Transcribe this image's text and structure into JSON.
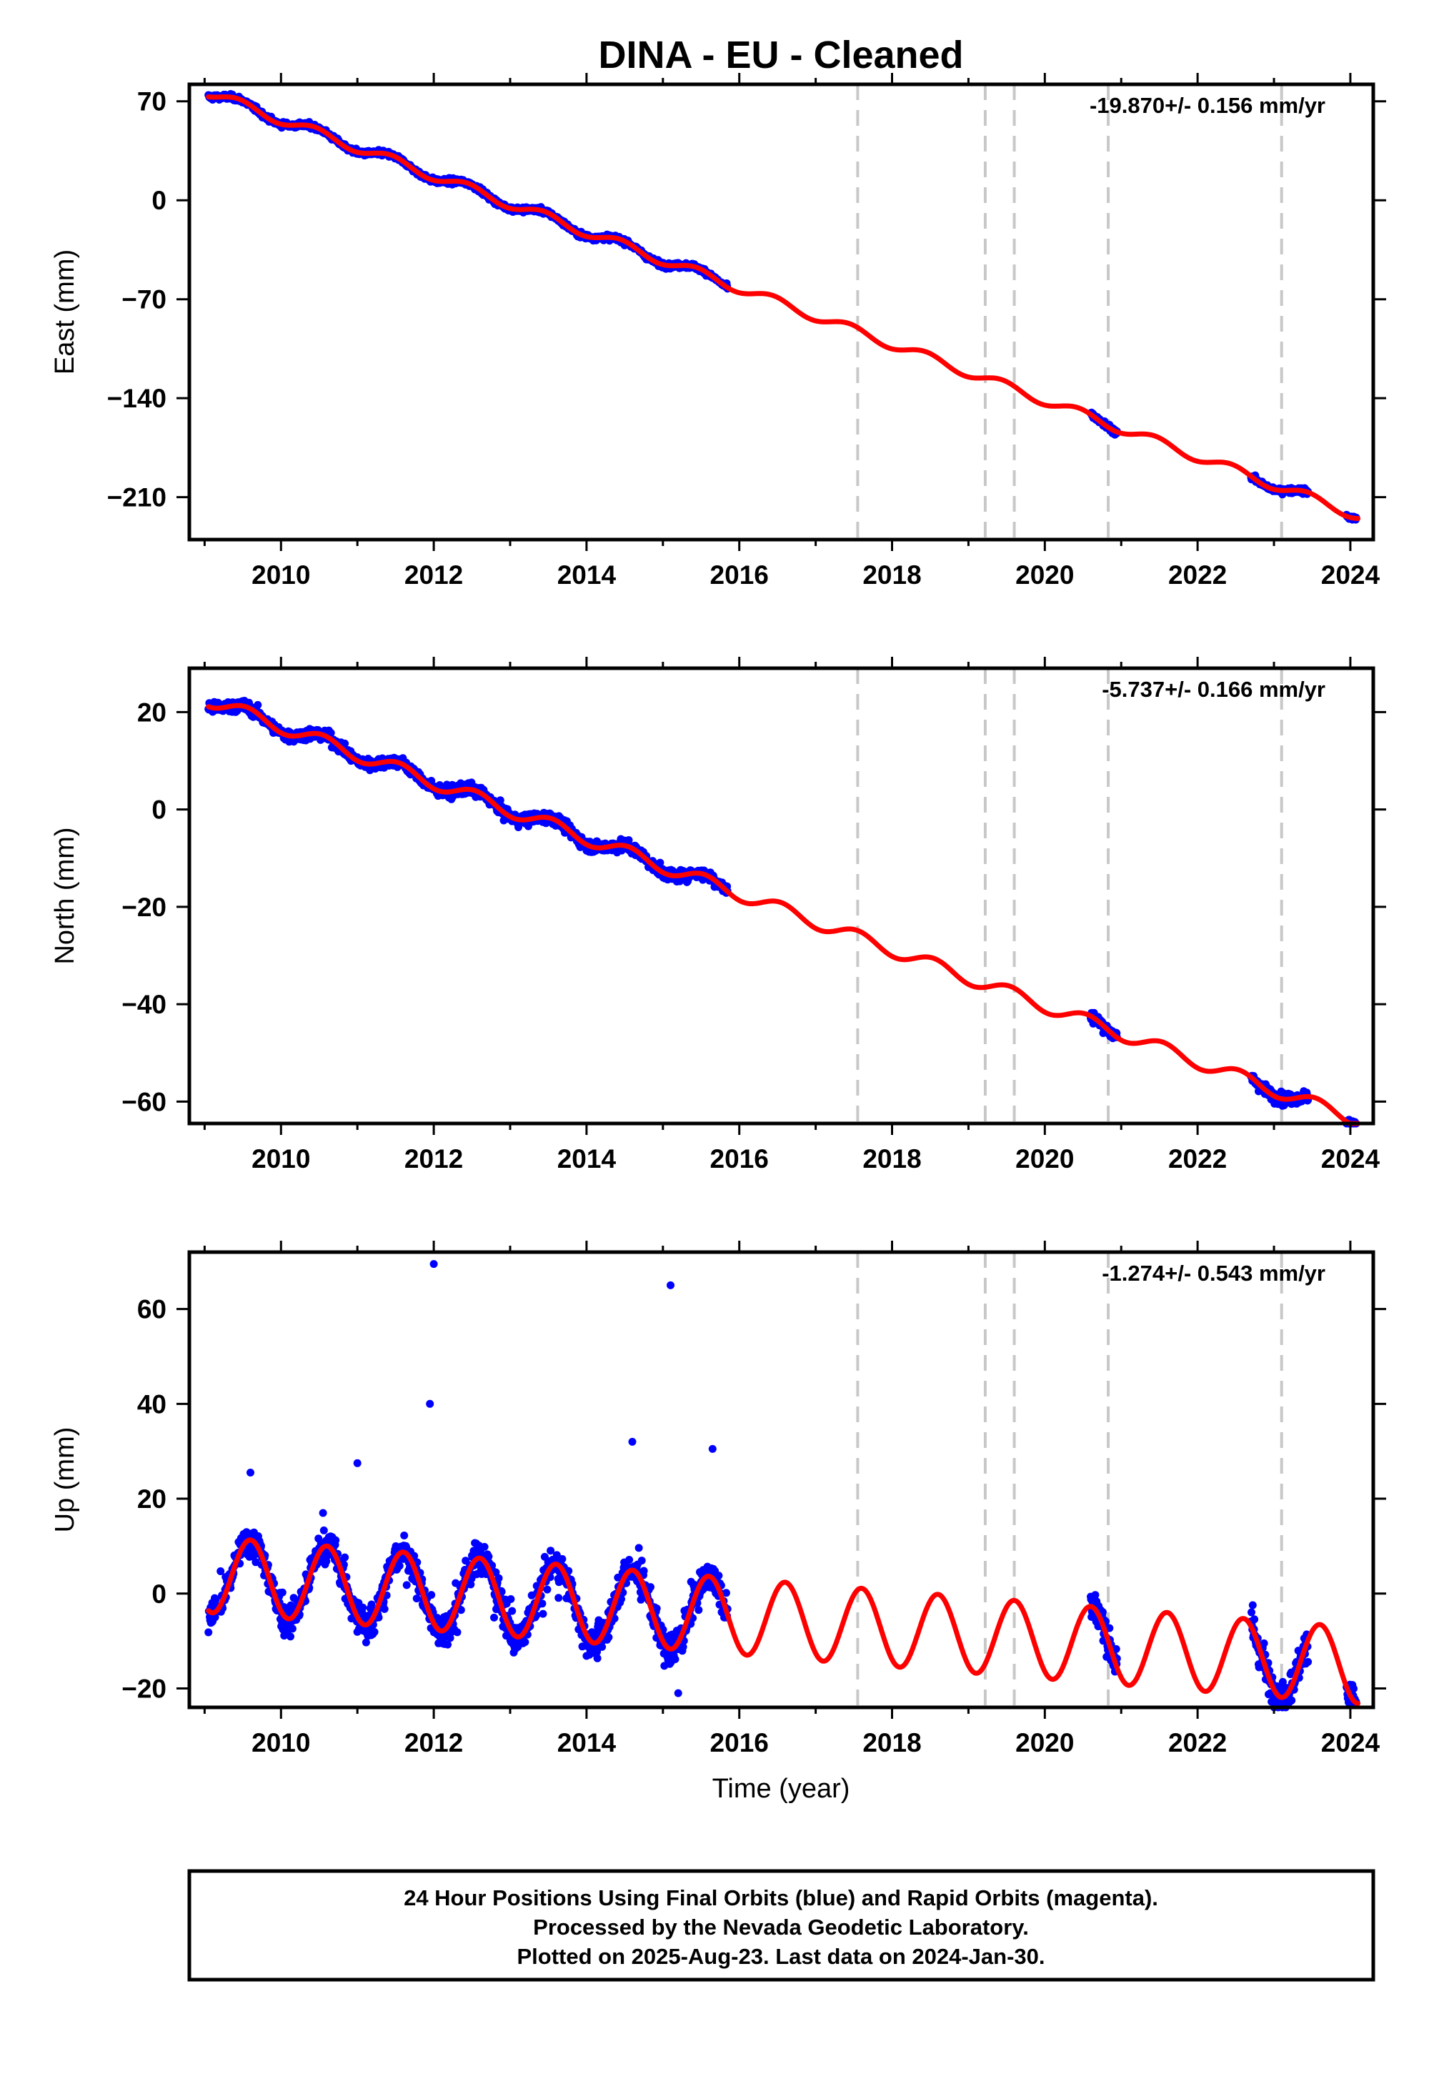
{
  "title": "DINA  - EU - Cleaned",
  "colors": {
    "points": "#0000ff",
    "fit": "#ff0000",
    "breaks": "#c8c8c8"
  },
  "xlabel": "Time (year)",
  "footer": {
    "line1": "24 Hour Positions Using Final Orbits (blue) and Rapid Orbits (magenta).",
    "line2": "Processed by the Nevada Geodetic Laboratory.",
    "line3": "Plotted on 2025-Aug-23. Last data on 2024-Jan-30."
  },
  "chart_data": [
    {
      "type": "scatter",
      "component": "east",
      "ylabel": "East (mm)",
      "rate_label": "-19.870+/- 0.156 mm/yr",
      "xlim": [
        2008.8,
        2024.3
      ],
      "ylim": [
        -240,
        82
      ],
      "xticks": [
        2010,
        2012,
        2014,
        2016,
        2018,
        2020,
        2022,
        2024
      ],
      "yticks": [
        70,
        0,
        -70,
        -140,
        -210
      ],
      "ytick_labels": [
        "70",
        "0",
        "−70",
        "−140",
        "−210"
      ],
      "rate": -19.87,
      "offset": 76.0,
      "t0": 2009.05,
      "seasonal_amp": 3.5,
      "seasonal_phase_peak": 0.45,
      "noise": 2.2,
      "data_windows": [
        [
          2009.05,
          2015.85
        ],
        [
          2020.6,
          2020.95
        ],
        [
          2022.7,
          2023.45
        ],
        [
          2023.95,
          2024.08
        ]
      ],
      "step_breaks": [
        2017.55,
        2019.22,
        2019.6,
        2020.83,
        2023.1
      ],
      "outliers": []
    },
    {
      "type": "scatter",
      "component": "north",
      "ylabel": "North (mm)",
      "rate_label": "-5.737+/- 0.166 mm/yr",
      "xlim": [
        2008.8,
        2024.3
      ],
      "ylim": [
        -64.5,
        29
      ],
      "xticks": [
        2010,
        2012,
        2014,
        2016,
        2018,
        2020,
        2022,
        2024
      ],
      "yticks": [
        20,
        0,
        -20,
        -40,
        -60
      ],
      "ytick_labels": [
        "20",
        "0",
        "−20",
        "−40",
        "−60"
      ],
      "rate": -5.737,
      "offset": 22.5,
      "t0": 2009.05,
      "seasonal_amp": 1.4,
      "seasonal_phase_peak": 0.55,
      "noise": 1.4,
      "data_windows": [
        [
          2009.05,
          2015.85
        ],
        [
          2020.6,
          2020.95
        ],
        [
          2022.7,
          2023.45
        ],
        [
          2023.95,
          2024.08
        ]
      ],
      "step_breaks": [
        2017.55,
        2019.22,
        2019.6,
        2020.83,
        2023.1
      ],
      "outliers": []
    },
    {
      "type": "scatter",
      "component": "up",
      "ylabel": "Up (mm)",
      "rate_label": "-1.274+/- 0.543 mm/yr",
      "xlim": [
        2008.8,
        2024.3
      ],
      "ylim": [
        -24,
        72
      ],
      "xticks": [
        2010,
        2012,
        2014,
        2016,
        2018,
        2020,
        2022,
        2024
      ],
      "yticks": [
        60,
        40,
        20,
        0,
        -20
      ],
      "ytick_labels": [
        "60",
        "40",
        "20",
        "0",
        "−20"
      ],
      "rate": -1.274,
      "offset": 4.0,
      "t0": 2009.05,
      "seasonal_amp": 8.0,
      "seasonal_phase_peak": 0.6,
      "noise": 4.0,
      "data_windows": [
        [
          2009.05,
          2015.85
        ],
        [
          2020.6,
          2020.95
        ],
        [
          2022.7,
          2023.45
        ],
        [
          2023.95,
          2024.08
        ]
      ],
      "step_breaks": [
        2017.55,
        2019.22,
        2019.6,
        2020.83,
        2023.1
      ],
      "outliers": [
        [
          2012.0,
          69.5
        ],
        [
          2015.1,
          65.0
        ],
        [
          2011.95,
          40.0
        ],
        [
          2011.0,
          27.5
        ],
        [
          2014.6,
          32.0
        ],
        [
          2015.65,
          30.5
        ],
        [
          2009.6,
          25.5
        ],
        [
          2015.2,
          -21.0
        ]
      ]
    }
  ]
}
